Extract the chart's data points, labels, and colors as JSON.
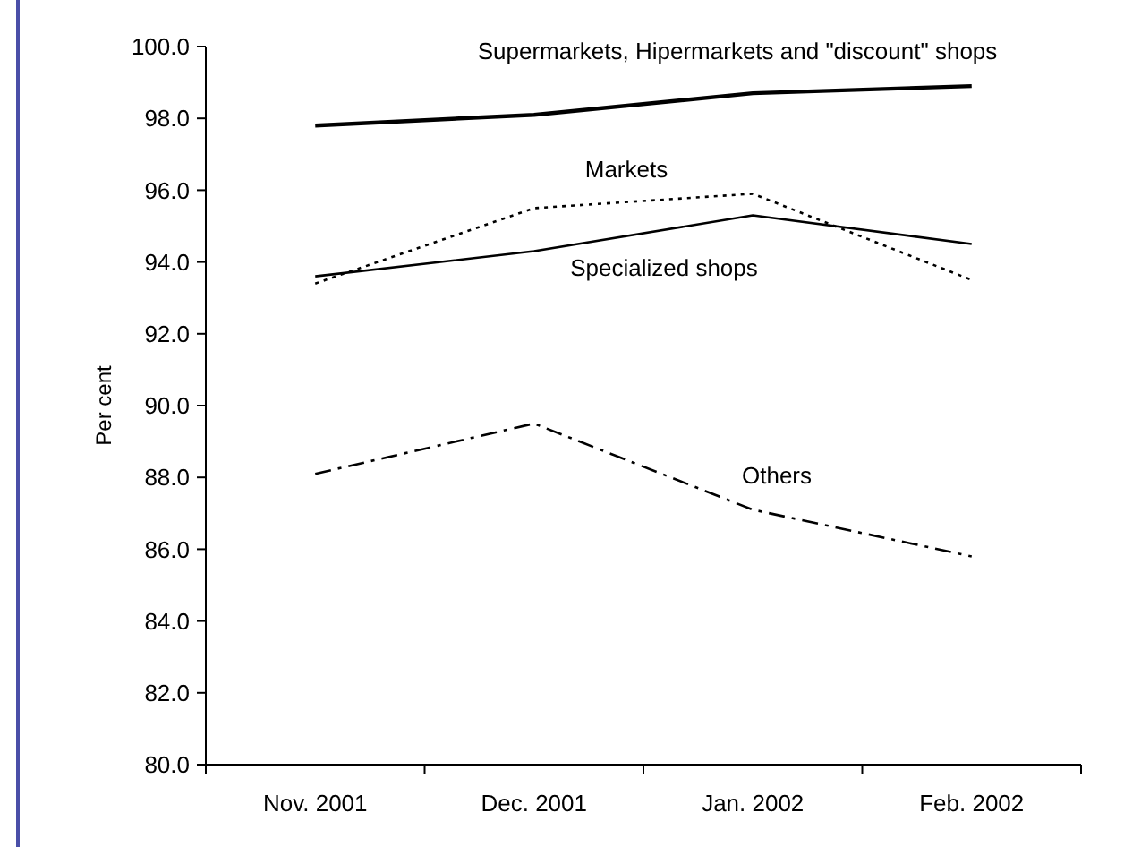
{
  "chart_data": {
    "type": "line",
    "ylabel": "Per cent",
    "categories": [
      "Nov. 2001",
      "Dec. 2001",
      "Jan. 2002",
      "Feb. 2002"
    ],
    "series": [
      {
        "name": "Supermarkets, Hipermarkets and \"discount\" shops",
        "color": "#000000",
        "values": [
          97.8,
          98.1,
          98.7,
          98.9
        ],
        "line_style": "solid"
      },
      {
        "name": "Markets",
        "color": "#000000",
        "values": [
          93.4,
          95.5,
          95.9,
          93.5
        ],
        "line_style": "dotted"
      },
      {
        "name": "Specialized shops",
        "color": "#000000",
        "values": [
          93.6,
          94.3,
          95.3,
          94.5
        ],
        "line_style": "solid"
      },
      {
        "name": "Others",
        "color": "#000000",
        "values": [
          88.1,
          89.5,
          87.1,
          85.8
        ],
        "line_style": "dashed"
      }
    ],
    "ylim": [
      80,
      100
    ],
    "yticks": [
      {
        "value": 80,
        "label": "80.0"
      },
      {
        "value": 82,
        "label": "82.0"
      },
      {
        "value": 84,
        "label": "84.0"
      },
      {
        "value": 86,
        "label": "86.0"
      },
      {
        "value": 88,
        "label": "88.0"
      },
      {
        "value": 90,
        "label": "90.0"
      },
      {
        "value": 92,
        "label": "92.0"
      },
      {
        "value": 94,
        "label": "94.0"
      },
      {
        "value": 96,
        "label": "96.0"
      },
      {
        "value": 98,
        "label": "98.0"
      },
      {
        "value": 100,
        "label": "100.0"
      }
    ],
    "marker": "none"
  }
}
